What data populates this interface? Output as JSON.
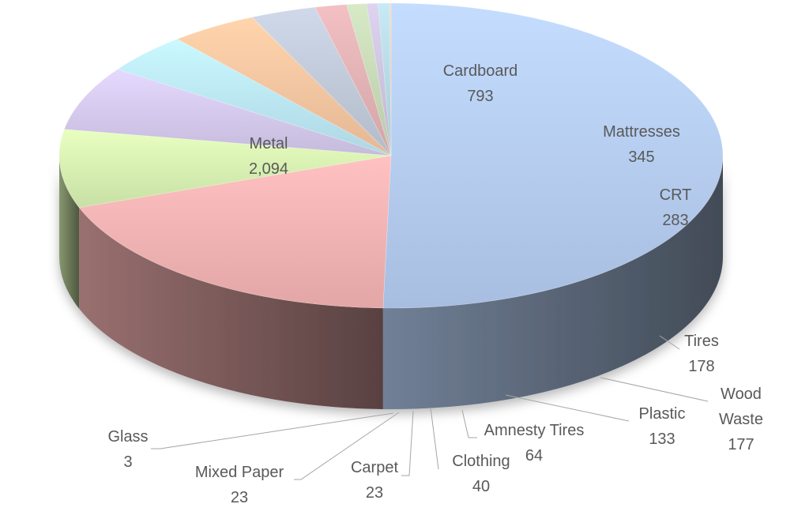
{
  "chart_data": {
    "type": "pie",
    "three_d": true,
    "categories": [
      "Metal",
      "Cardboard",
      "Mattresses",
      "CRT",
      "Tires",
      "Wood Waste",
      "Plastic",
      "Amnesty Tires",
      "Clothing",
      "Carpet",
      "Mixed Paper",
      "Glass"
    ],
    "display_values": [
      "2,094",
      "793",
      "345",
      "283",
      "178",
      "177",
      "133",
      "64",
      "40",
      "23",
      "23",
      "3"
    ],
    "values": [
      2094,
      793,
      345,
      283,
      178,
      177,
      133,
      64,
      40,
      23,
      23,
      3
    ],
    "colors": [
      "#b7cff3",
      "#f7b4b4",
      "#d9f3b3",
      "#d6cbee",
      "#bde9f8",
      "#f9c7a2",
      "#c2cbdb",
      "#e3b3b6",
      "#c9dbb9",
      "#cfc6e0",
      "#b9dbe6",
      "#f2c9a8"
    ],
    "legend": "none"
  }
}
